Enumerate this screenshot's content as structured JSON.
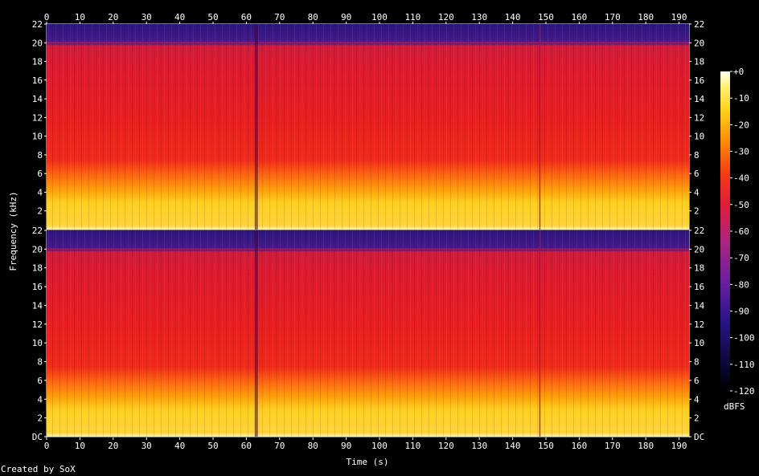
{
  "chart_data": {
    "type": "heatmap",
    "title": "",
    "xlabel": "Time (s)",
    "ylabel": "Frequency (kHz)",
    "x_ticks": [
      "0",
      "10",
      "20",
      "30",
      "40",
      "50",
      "60",
      "70",
      "80",
      "90",
      "100",
      "110",
      "120",
      "130",
      "140",
      "150",
      "160",
      "170",
      "180",
      "190"
    ],
    "xlim": [
      0,
      193
    ],
    "channels": [
      {
        "y_ticks": [
          "2",
          "4",
          "6",
          "8",
          "10",
          "12",
          "14",
          "16",
          "18",
          "20",
          "22"
        ],
        "ylim": [
          0,
          22
        ]
      },
      {
        "y_ticks": [
          "DC",
          "2",
          "4",
          "6",
          "8",
          "10",
          "12",
          "14",
          "16",
          "18",
          "20",
          "22"
        ],
        "ylim": [
          0,
          22
        ]
      }
    ],
    "colorbar": {
      "label": "dBFS",
      "ticks": [
        "+0",
        "-10",
        "-20",
        "-30",
        "-40",
        "-50",
        "-60",
        "-70",
        "-80",
        "-90",
        "-100",
        "-110",
        "-120"
      ],
      "range": [
        -120,
        0
      ],
      "colors": [
        "#000000",
        "#1a0c5a",
        "#4a1a9a",
        "#8a2a8a",
        "#c8205a",
        "#f01818",
        "#f85a0a",
        "#ffa800",
        "#ffe040",
        "#fffce0"
      ]
    },
    "notes_visible": {
      "bandwidth_cutoff_khz": 20,
      "dropout_time_s": 63,
      "transient_time_s": 148
    }
  },
  "footer": {
    "credit": "Created by SoX"
  }
}
